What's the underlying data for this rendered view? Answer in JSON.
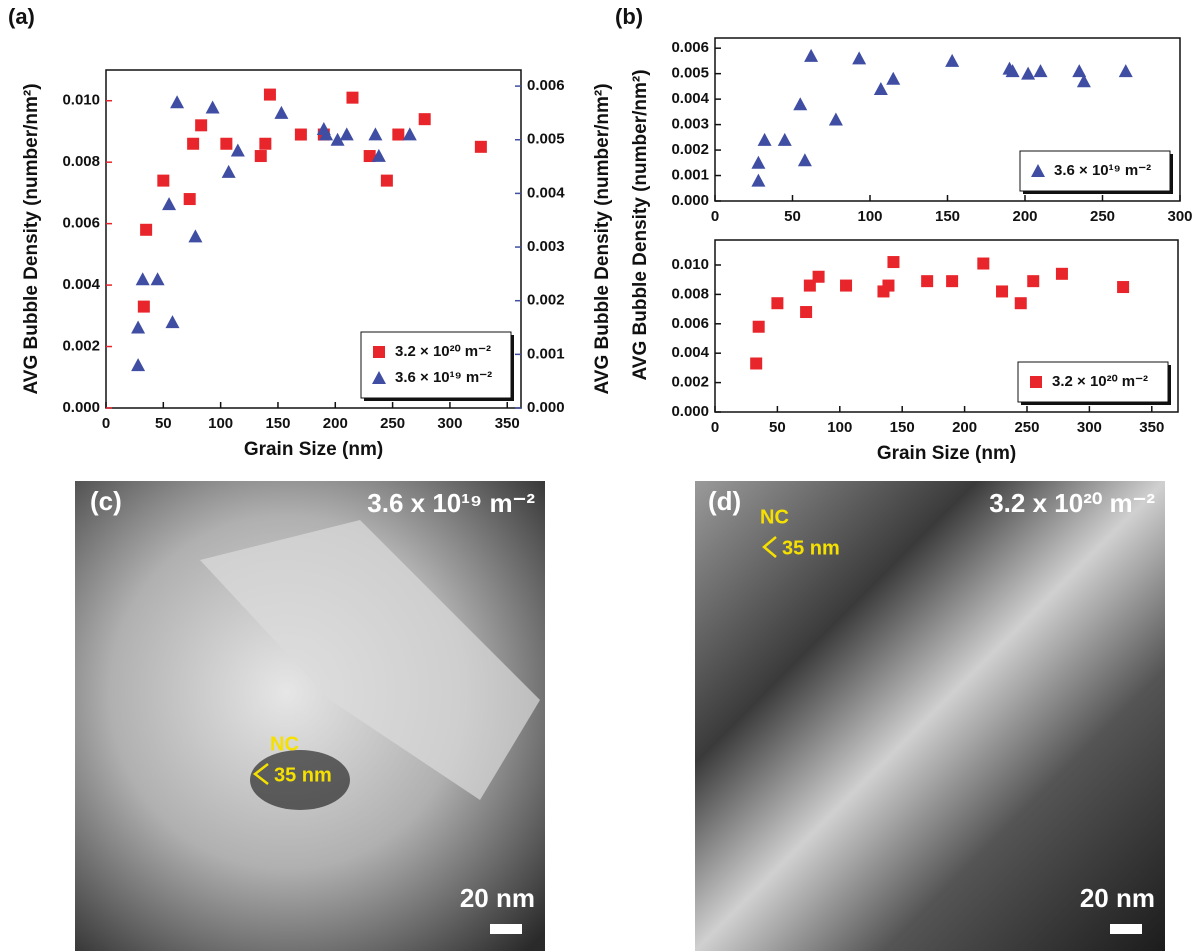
{
  "chart_data": [
    {
      "type": "scatter",
      "panel": "(a)",
      "xlabel": "Grain Size (nm)",
      "ylabel": "AVG Bubble Density (number/nm²)",
      "y2label": "AVG Bubble Density (number/nm²)",
      "xlim": [
        0,
        362
      ],
      "xticks": [
        0,
        50,
        100,
        150,
        200,
        250,
        300,
        350
      ],
      "ylim": [
        0,
        0.011
      ],
      "yticks": [
        {
          "value": 0,
          "label": "0.000"
        },
        {
          "value": 0.002,
          "label": "0.002"
        },
        {
          "value": 0.004,
          "label": "0.004"
        },
        {
          "value": 0.006,
          "label": "0.006"
        },
        {
          "value": 0.008,
          "label": "0.008"
        },
        {
          "value": 0.01,
          "label": "0.010"
        }
      ],
      "y2lim": [
        0,
        0.0063
      ],
      "y2ticks": [
        {
          "value": 0,
          "label": "0.000"
        },
        {
          "value": 0.001,
          "label": "0.001"
        },
        {
          "value": 0.002,
          "label": "0.002"
        },
        {
          "value": 0.003,
          "label": "0.003"
        },
        {
          "value": 0.004,
          "label": "0.004"
        },
        {
          "value": 0.005,
          "label": "0.005"
        },
        {
          "value": 0.006,
          "label": "0.006"
        }
      ],
      "ytick_color": "#e8252a",
      "y2tick_color": "#3f4ea3",
      "legend": "lower right",
      "series": [
        {
          "name": "3.2 × 10²⁰ m⁻²",
          "color": "#e8252a",
          "marker": "square",
          "x": [
            33,
            35,
            50,
            73,
            76,
            83,
            105,
            135,
            139,
            143,
            170,
            190,
            215,
            230,
            245,
            255,
            278,
            327
          ],
          "values": [
            0.0033,
            0.0058,
            0.0074,
            0.0068,
            0.0086,
            0.0092,
            0.0086,
            0.0082,
            0.0086,
            0.0102,
            0.0089,
            0.0089,
            0.0101,
            0.0082,
            0.0074,
            0.0089,
            0.0094,
            0.0085
          ]
        },
        {
          "name": "3.6 × 10¹⁹ m⁻²",
          "color": "#3f4ea3",
          "marker": "triangle",
          "axis": "y2",
          "x": [
            28,
            28,
            32,
            45,
            55,
            58,
            62,
            78,
            93,
            107,
            115,
            153,
            190,
            192,
            202,
            210,
            235,
            238,
            265
          ],
          "values": [
            0.0015,
            0.0008,
            0.0024,
            0.0024,
            0.0038,
            0.0016,
            0.0057,
            0.0032,
            0.0056,
            0.0044,
            0.0048,
            0.0055,
            0.0052,
            0.0051,
            0.005,
            0.0051,
            0.0051,
            0.0047,
            0.0051
          ]
        }
      ]
    },
    {
      "type": "scatter",
      "panel": "(b)",
      "ylabel": "AVG Bubble Density (number/nm²)",
      "xlim": [
        0,
        300
      ],
      "xticks": [
        0,
        50,
        100,
        150,
        200,
        250,
        300
      ],
      "ylim": [
        0,
        0.0064
      ],
      "yticks": [
        {
          "value": 0,
          "label": "0.000"
        },
        {
          "value": 0.001,
          "label": "0.001"
        },
        {
          "value": 0.002,
          "label": "0.002"
        },
        {
          "value": 0.003,
          "label": "0.003"
        },
        {
          "value": 0.004,
          "label": "0.004"
        },
        {
          "value": 0.005,
          "label": "0.005"
        },
        {
          "value": 0.006,
          "label": "0.006"
        }
      ],
      "legend": "lower right",
      "series": [
        {
          "name": "3.6 × 10¹⁹ m⁻²",
          "color": "#3f4ea3",
          "marker": "triangle",
          "x": [
            28,
            28,
            32,
            45,
            55,
            58,
            62,
            78,
            93,
            107,
            115,
            153,
            190,
            192,
            202,
            210,
            235,
            238,
            265
          ],
          "values": [
            0.0015,
            0.0008,
            0.0024,
            0.0024,
            0.0038,
            0.0016,
            0.0057,
            0.0032,
            0.0056,
            0.0044,
            0.0048,
            0.0055,
            0.0052,
            0.0051,
            0.005,
            0.0051,
            0.0051,
            0.0047,
            0.0051
          ]
        }
      ]
    },
    {
      "type": "scatter",
      "xlabel": "Grain Size (nm)",
      "xlim": [
        0,
        371
      ],
      "xticks": [
        0,
        50,
        100,
        150,
        200,
        250,
        300,
        350
      ],
      "ylim": [
        0,
        0.0117
      ],
      "yticks": [
        {
          "value": 0,
          "label": "0.000"
        },
        {
          "value": 0.002,
          "label": "0.002"
        },
        {
          "value": 0.004,
          "label": "0.004"
        },
        {
          "value": 0.006,
          "label": "0.006"
        },
        {
          "value": 0.008,
          "label": "0.008"
        },
        {
          "value": 0.01,
          "label": "0.010"
        }
      ],
      "legend": "lower right",
      "series": [
        {
          "name": "3.2 × 10²⁰ m⁻²",
          "color": "#e8252a",
          "marker": "square",
          "x": [
            33,
            35,
            50,
            73,
            76,
            83,
            105,
            135,
            139,
            143,
            170,
            190,
            215,
            230,
            245,
            255,
            278,
            327
          ],
          "values": [
            0.0033,
            0.0058,
            0.0074,
            0.0068,
            0.0086,
            0.0092,
            0.0086,
            0.0082,
            0.0086,
            0.0102,
            0.0089,
            0.0089,
            0.0101,
            0.0082,
            0.0074,
            0.0089,
            0.0094,
            0.0085
          ]
        }
      ]
    }
  ],
  "images": [
    {
      "panel": "(c)",
      "dose": "3.6 x 10¹⁹ m⁻²",
      "nc": "NC",
      "size": "35 nm",
      "scale": "20 nm"
    },
    {
      "panel": "(d)",
      "dose": "3.2 x 10²⁰ m⁻²",
      "nc": "NC",
      "size": "35 nm",
      "scale": "20 nm"
    }
  ]
}
